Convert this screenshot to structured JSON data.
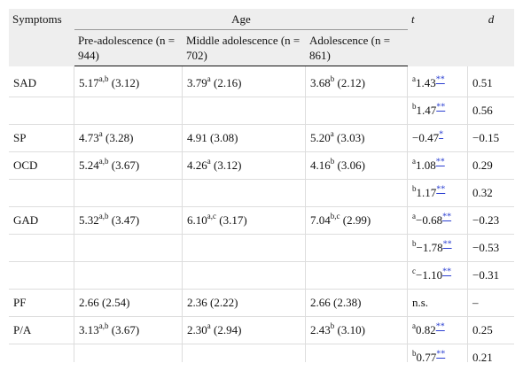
{
  "header": {
    "symptoms": "Symptoms",
    "age": "Age",
    "t": "t",
    "d": "d",
    "groups": [
      "Pre-adolescence (n = 944)",
      "Middle adolescence (n = 702)",
      "Adolescence (n = 861)"
    ]
  },
  "rows": [
    {
      "symptom": "SAD",
      "pre": "5.17",
      "pre_sup": "a,b",
      "pre_sd": " (3.12)",
      "mid": "3.79",
      "mid_sup": "a",
      "mid_sd": " (2.16)",
      "ado": "3.68",
      "ado_sup": "b",
      "ado_sd": " (2.12)",
      "t_sup": "a",
      "t": "1.43",
      "t_stars": "**",
      "d": "0.51"
    },
    {
      "symptom": "",
      "pre": "",
      "pre_sup": "",
      "pre_sd": "",
      "mid": "",
      "mid_sup": "",
      "mid_sd": "",
      "ado": "",
      "ado_sup": "",
      "ado_sd": "",
      "t_sup": "b",
      "t": "1.47",
      "t_stars": "**",
      "d": "0.56"
    },
    {
      "symptom": "SP",
      "pre": "4.73",
      "pre_sup": "a",
      "pre_sd": " (3.28)",
      "mid": "4.91 (3.08)",
      "mid_sup": "",
      "mid_sd": "",
      "ado": "5.20",
      "ado_sup": "a",
      "ado_sd": " (3.03)",
      "t_sup": "",
      "t": "−0.47",
      "t_stars": "*",
      "d": "−0.15"
    },
    {
      "symptom": "OCD",
      "pre": "5.24",
      "pre_sup": "a,b",
      "pre_sd": " (3.67)",
      "mid": "4.26",
      "mid_sup": "a",
      "mid_sd": " (3.12)",
      "ado": "4.16",
      "ado_sup": "b",
      "ado_sd": " (3.06)",
      "t_sup": "a",
      "t": "1.08",
      "t_stars": "**",
      "d": "0.29"
    },
    {
      "symptom": "",
      "pre": "",
      "pre_sup": "",
      "pre_sd": "",
      "mid": "",
      "mid_sup": "",
      "mid_sd": "",
      "ado": "",
      "ado_sup": "",
      "ado_sd": "",
      "t_sup": "b",
      "t": "1.17",
      "t_stars": "**",
      "d": "0.32"
    },
    {
      "symptom": "GAD",
      "pre": "5.32",
      "pre_sup": "a,b",
      "pre_sd": " (3.47)",
      "mid": "6.10",
      "mid_sup": "a,c",
      "mid_sd": " (3.17)",
      "ado": "7.04",
      "ado_sup": "b,c",
      "ado_sd": " (2.99)",
      "t_sup": "a",
      "t": "−0.68",
      "t_stars": "**",
      "d": "−0.23"
    },
    {
      "symptom": "",
      "pre": "",
      "pre_sup": "",
      "pre_sd": "",
      "mid": "",
      "mid_sup": "",
      "mid_sd": "",
      "ado": "",
      "ado_sup": "",
      "ado_sd": "",
      "t_sup": "b",
      "t": "−1.78",
      "t_stars": "**",
      "d": "−0.53"
    },
    {
      "symptom": "",
      "pre": "",
      "pre_sup": "",
      "pre_sd": "",
      "mid": "",
      "mid_sup": "",
      "mid_sd": "",
      "ado": "",
      "ado_sup": "",
      "ado_sd": "",
      "t_sup": "c",
      "t": "−1.10",
      "t_stars": "**",
      "d": "−0.31"
    },
    {
      "symptom": "PF",
      "pre": "2.66 (2.54)",
      "pre_sup": "",
      "pre_sd": "",
      "mid": "2.36 (2.22)",
      "mid_sup": "",
      "mid_sd": "",
      "ado": "2.66 (2.38)",
      "ado_sup": "",
      "ado_sd": "",
      "t_sup": "",
      "t": "n.s.",
      "t_stars": "",
      "d": "–"
    },
    {
      "symptom": "P/A",
      "pre": "3.13",
      "pre_sup": "a,b",
      "pre_sd": " (3.67)",
      "mid": "2.30",
      "mid_sup": "a",
      "mid_sd": " (2.94)",
      "ado": "2.43",
      "ado_sup": "b",
      "ado_sd": " (3.10)",
      "t_sup": "a",
      "t": "0.82",
      "t_stars": "**",
      "d": "0.25"
    },
    {
      "symptom": "",
      "pre": "",
      "pre_sup": "",
      "pre_sd": "",
      "mid": "",
      "mid_sup": "",
      "mid_sd": "",
      "ado": "",
      "ado_sup": "",
      "ado_sd": "",
      "t_sup": "b",
      "t": "0.77",
      "t_stars": "**",
      "d": "0.21"
    }
  ]
}
